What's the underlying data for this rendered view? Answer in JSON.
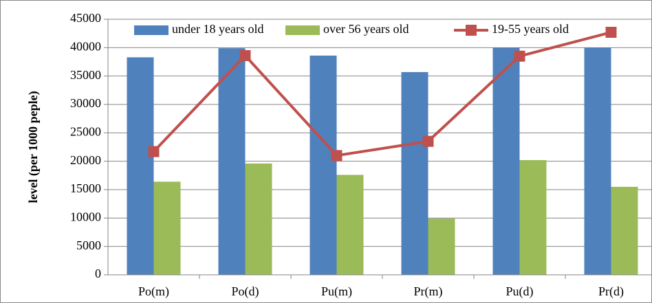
{
  "chart_data": {
    "type": "bar",
    "y_label": "level (per 1000 peple)",
    "categories": [
      "Po(m)",
      "Po(d)",
      "Pu(m)",
      "Pr(m)",
      "Pu(d)",
      "Pr(d)"
    ],
    "series": [
      {
        "name": "under 18 years old",
        "color": "#4f81bd",
        "type": "bar",
        "values": [
          38300,
          39900,
          38600,
          35700,
          40000,
          40000
        ]
      },
      {
        "name": "over 56 years old",
        "color": "#9bbb59",
        "type": "bar",
        "values": [
          16400,
          19600,
          17600,
          9900,
          20200,
          15500
        ]
      },
      {
        "name": "19-55 years old",
        "color": "#c0504d",
        "type": "line",
        "values": [
          21700,
          38600,
          21000,
          23500,
          38500,
          42700
        ]
      }
    ],
    "ylim": [
      0,
      45000
    ],
    "yticks": [
      0,
      5000,
      10000,
      15000,
      20000,
      25000,
      30000,
      35000,
      40000,
      45000
    ],
    "grid": true,
    "legend": "top"
  }
}
